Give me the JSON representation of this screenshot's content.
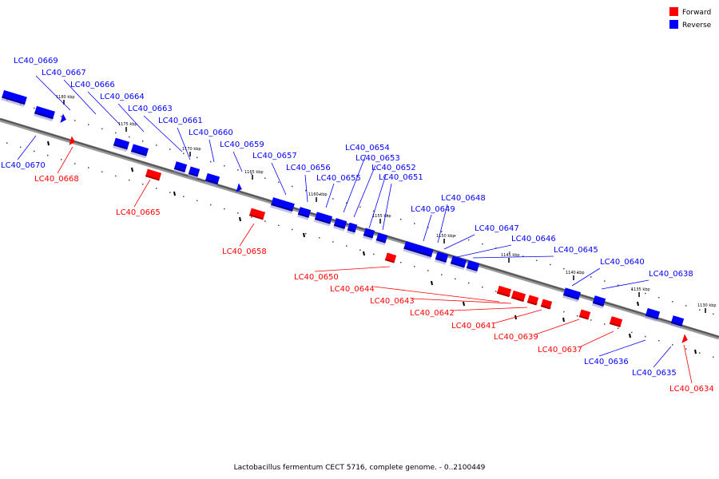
{
  "caption": "Lactobacillus fermentum CECT 5716, complete genome. - 0..2100449",
  "legend": {
    "forward": "Forward",
    "reverse": "Reverse"
  },
  "colors": {
    "forward": "#ff0000",
    "reverse": "#0000ff",
    "forward_dark": "#b00000",
    "reverse_dark": "#00008c",
    "backbone": "#555555"
  },
  "ticks": [
    "1180 kbp",
    "1175 kbp",
    "1170 kbp",
    "1165 kbp",
    "1160 kbp",
    "1155 kbp",
    "1150 kbp",
    "1145 kbp",
    "1140 kbp",
    "1135 kbp",
    "1130 kbp"
  ],
  "genes": [
    {
      "id": "LC40_0669",
      "strand": "reverse"
    },
    {
      "id": "LC40_0667",
      "strand": "reverse"
    },
    {
      "id": "LC40_0666",
      "strand": "reverse"
    },
    {
      "id": "LC40_0664",
      "strand": "reverse"
    },
    {
      "id": "LC40_0663",
      "strand": "reverse"
    },
    {
      "id": "LC40_0661",
      "strand": "reverse"
    },
    {
      "id": "LC40_0660",
      "strand": "reverse"
    },
    {
      "id": "LC40_0659",
      "strand": "reverse"
    },
    {
      "id": "LC40_0657",
      "strand": "reverse"
    },
    {
      "id": "LC40_0656",
      "strand": "reverse"
    },
    {
      "id": "LC40_0655",
      "strand": "reverse"
    },
    {
      "id": "LC40_0654",
      "strand": "reverse"
    },
    {
      "id": "LC40_0653",
      "strand": "reverse"
    },
    {
      "id": "LC40_0652",
      "strand": "reverse"
    },
    {
      "id": "LC40_0651",
      "strand": "reverse"
    },
    {
      "id": "LC40_0648",
      "strand": "reverse"
    },
    {
      "id": "LC40_0649",
      "strand": "reverse"
    },
    {
      "id": "LC40_0647",
      "strand": "reverse"
    },
    {
      "id": "LC40_0646",
      "strand": "reverse"
    },
    {
      "id": "LC40_0645",
      "strand": "reverse"
    },
    {
      "id": "LC40_0640",
      "strand": "reverse"
    },
    {
      "id": "LC40_0638",
      "strand": "reverse"
    },
    {
      "id": "LC40_0670",
      "strand": "reverse"
    },
    {
      "id": "LC40_0636",
      "strand": "reverse"
    },
    {
      "id": "LC40_0635",
      "strand": "reverse"
    },
    {
      "id": "LC40_0668",
      "strand": "forward"
    },
    {
      "id": "LC40_0665",
      "strand": "forward"
    },
    {
      "id": "LC40_0658",
      "strand": "forward"
    },
    {
      "id": "LC40_0650",
      "strand": "forward"
    },
    {
      "id": "LC40_0644",
      "strand": "forward"
    },
    {
      "id": "LC40_0643",
      "strand": "forward"
    },
    {
      "id": "LC40_0642",
      "strand": "forward"
    },
    {
      "id": "LC40_0641",
      "strand": "forward"
    },
    {
      "id": "LC40_0639",
      "strand": "forward"
    },
    {
      "id": "LC40_0637",
      "strand": "forward"
    },
    {
      "id": "LC40_0634",
      "strand": "forward"
    }
  ]
}
